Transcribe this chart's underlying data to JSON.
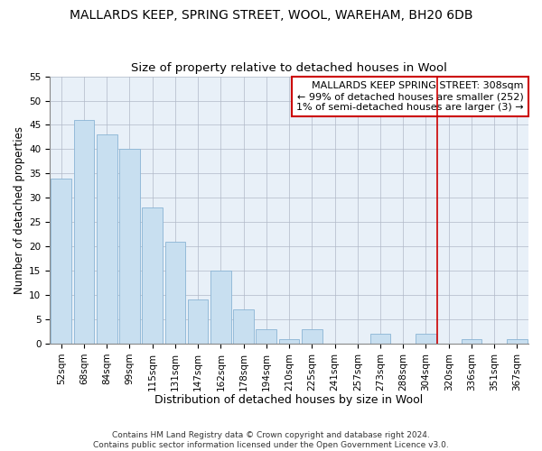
{
  "title": "MALLARDS KEEP, SPRING STREET, WOOL, WAREHAM, BH20 6DB",
  "subtitle": "Size of property relative to detached houses in Wool",
  "xlabel": "Distribution of detached houses by size in Wool",
  "ylabel": "Number of detached properties",
  "bar_labels": [
    "52sqm",
    "68sqm",
    "84sqm",
    "99sqm",
    "115sqm",
    "131sqm",
    "147sqm",
    "162sqm",
    "178sqm",
    "194sqm",
    "210sqm",
    "225sqm",
    "241sqm",
    "257sqm",
    "273sqm",
    "288sqm",
    "304sqm",
    "320sqm",
    "336sqm",
    "351sqm",
    "367sqm"
  ],
  "bar_values": [
    34,
    46,
    43,
    40,
    28,
    21,
    9,
    15,
    7,
    3,
    1,
    3,
    0,
    0,
    2,
    0,
    2,
    0,
    1,
    0,
    1
  ],
  "bar_color": "#c8dff0",
  "bar_edge_color": "#8ab4d4",
  "plot_bg_color": "#e8f0f8",
  "vline_x": 16.5,
  "vline_color": "#cc0000",
  "annotation_line1": "MALLARDS KEEP SPRING STREET: 308sqm",
  "annotation_line2": "← 99% of detached houses are smaller (252)",
  "annotation_line3": "1% of semi-detached houses are larger (3) →",
  "annotation_box_color": "#ffffff",
  "annotation_box_edgecolor": "#cc0000",
  "footer1": "Contains HM Land Registry data © Crown copyright and database right 2024.",
  "footer2": "Contains public sector information licensed under the Open Government Licence v3.0.",
  "ylim": [
    0,
    55
  ],
  "yticks": [
    0,
    5,
    10,
    15,
    20,
    25,
    30,
    35,
    40,
    45,
    50,
    55
  ],
  "title_fontsize": 10,
  "subtitle_fontsize": 9.5,
  "xlabel_fontsize": 9,
  "ylabel_fontsize": 8.5,
  "tick_fontsize": 7.5,
  "annotation_fontsize": 8,
  "footer_fontsize": 6.5
}
